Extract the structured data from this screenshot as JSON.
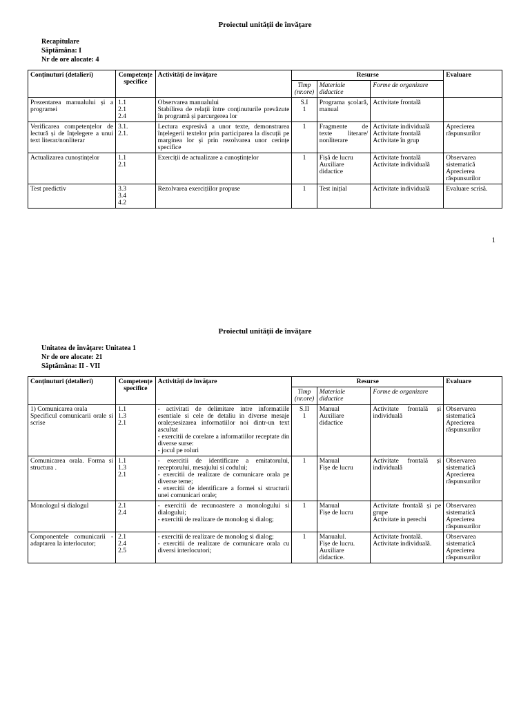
{
  "page1": {
    "title": "Proiectul unității de învățare",
    "meta1": "Recapitulare",
    "meta2": "Săptămâna: I",
    "meta3": "Nr de ore alocate: 4",
    "headers": {
      "continuturi": "Conținuturi (detalieri)",
      "competente": "Competențe specifice",
      "activitati": "Activități de învățare",
      "resurse": "Resurse",
      "timp": "Timp (nr.ore)",
      "materiale": "Materiale didactice",
      "forme": "Forme de organizare",
      "evaluare": "Evaluare"
    },
    "rows": [
      {
        "cont": "Prezentarea manualului și a programei",
        "comp": "1.1\n2.1\n2.4",
        "act": "Observarea manualului\nStabilirea de relații între conținuturile prevăzute în programă și parcurgerea lor",
        "timp": "S.I\n1",
        "mat": "Programa școlară, manual",
        "forme": "Activitate frontală",
        "eval": ""
      },
      {
        "cont": "Verificarea competențelor de lectură și de înțelegere a unui text literar/nonliterar",
        "comp": "3.1.\n2.1.",
        "act": "Lectura expresivă a unor texte, demonstrarea înțelegerii textelor prin participarea la discuții pe marginea lor și prin rezolvarea unor cerințe specifice",
        "timp": "1",
        "mat": "Fragmente de texte literare/ nonliterare",
        "forme": "Activitate individuală\nActivitate frontală\nActivitate în grup",
        "eval": "Aprecierea răspunsurilor"
      },
      {
        "cont": "Actualizarea cunoștințelor",
        "comp": "1.1\n2.1",
        "act": "Exerciții de actualizare a cunoștințelor",
        "timp": "1",
        "mat": "Fișă de lucru\nAuxiliare didactice",
        "forme": "Activitate frontală\nActivitate individuală",
        "eval": "Observarea sistematică\nAprecierea răspunsurilor"
      },
      {
        "cont": "Test predictiv",
        "comp": "3.3\n3.4\n4.2",
        "act": "Rezolvarea exercițiilor propuse",
        "timp": "1",
        "mat": "Test inițial",
        "forme": "Activitate individuală",
        "eval": "Evaluare scrisă."
      }
    ],
    "pageNumber": "1"
  },
  "page2": {
    "title": "Proiectul unității de învățare",
    "meta1": "Unitatea de învățare: Unitatea 1",
    "meta2": "Nr de ore alocate: 21",
    "meta3": "Săptămâna: II - VII",
    "rows": [
      {
        "cont": "1) Comunicarea orala\nSpecificul comunicarii orale si scrise",
        "comp": "1.1\n1.3\n2.1",
        "act": "- activitati de delimitare intre informatiile esentiale si cele de detaliu in diverse mesaje orale;sesizarea informatiilor noi dintr-un text ascultat\n- exercitii de corelare a informatiilor receptate din diverse surse:\n- jocul pe roluri",
        "timp": "S.II\n1",
        "mat": "Manual\nAuxiliare didactice",
        "forme": "Activitate frontală și individuală",
        "eval": "Observarea sistematică\nAprecierea răspunsurilor"
      },
      {
        "cont": "Comunicarea orala. Forma si structura .",
        "comp": "1.1\n1.3\n2.1",
        "act": "- exercitii de identificare a emitatorului, receptorului, mesajului si codului;\n- exercitii de realizare de comunicare orala pe diverse teme;\n- exercitii de identificare a formei si structurii unei comunicari orale;",
        "timp": "1",
        "mat": "Manual\nFișe de lucru",
        "forme": "Activitate frontală și individuală",
        "eval": "Observarea sistematică\nAprecierea răspunsurilor"
      },
      {
        "cont": "Monologul si dialogul",
        "comp": "2.1\n2.4",
        "act": "- exercitii de recunoastere a monologului si dialogului;\n- exercitii de realizare de monolog si dialog;",
        "timp": "1",
        "mat": "Manual\nFișe de lucru",
        "forme": "Activitate frontală și pe grupe\nActivitate in perechi",
        "eval": "Observarea sistematică\nAprecierea răspunsurilor"
      },
      {
        "cont": "Componentele comunicarii - adaptarea la interlocutor;",
        "comp": "2.1\n2.4\n2.5",
        "act": "- exercitii de realizare de monolog si dialog;\n- exercitii de realizare de comunicare orala cu diversi interlocutori;",
        "timp": "1",
        "mat": "Manualul.\nFișe de lucru.\nAuxiliare didactice.",
        "forme": "Activitate frontală.\nActivitate individuală.",
        "eval": "Observarea sistematică\nAprecierea răspunsurilor"
      }
    ]
  }
}
